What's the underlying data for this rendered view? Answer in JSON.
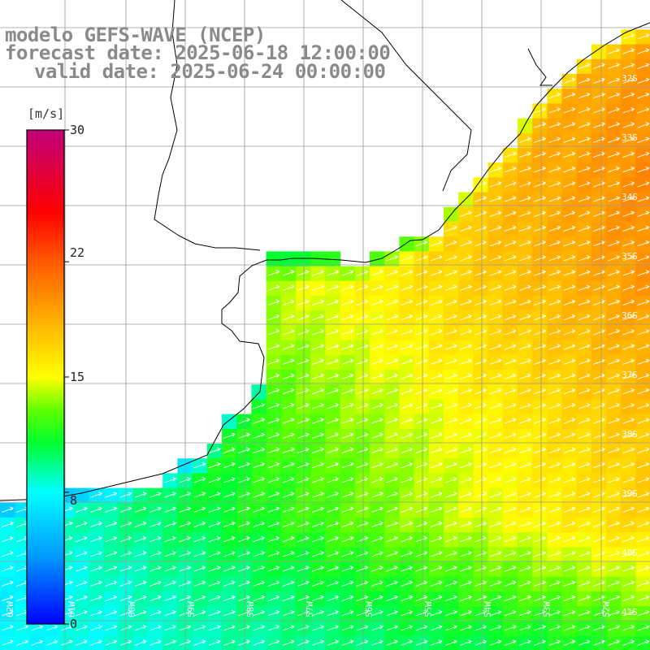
{
  "title": {
    "line1": "modelo GEFS-WAVE (NCEP)",
    "line2": "forecast date: 2025-06-18 12:00:00",
    "line3": "valid date: 2025-06-24 00:00:00"
  },
  "colorbar": {
    "units": "[m/s]",
    "min": 0,
    "max": 30,
    "ticks": [
      {
        "value": 30,
        "label": "30"
      },
      {
        "value": 22,
        "label": "22"
      },
      {
        "value": 15,
        "label": "15"
      },
      {
        "value": 8,
        "label": "8"
      },
      {
        "value": 0,
        "label": "0"
      }
    ],
    "stops": [
      {
        "value": 0,
        "color": "#0000ff"
      },
      {
        "value": 4,
        "color": "#0096ff"
      },
      {
        "value": 8,
        "color": "#00ffff"
      },
      {
        "value": 11,
        "color": "#00ff30"
      },
      {
        "value": 13,
        "color": "#60ff00"
      },
      {
        "value": 15,
        "color": "#ffff00"
      },
      {
        "value": 18.5,
        "color": "#ffae00"
      },
      {
        "value": 22,
        "color": "#ff5a00"
      },
      {
        "value": 25,
        "color": "#ff0000"
      },
      {
        "value": 30,
        "color": "#c0007a"
      }
    ]
  },
  "map": {
    "lat_labels": [
      "32S",
      "33S",
      "34S",
      "35S",
      "36S",
      "37S",
      "38S",
      "39S",
      "40S",
      "41S"
    ],
    "lon_labels": [
      "62W",
      "61W",
      "60W",
      "59W",
      "58W",
      "57W",
      "56W",
      "55W",
      "54W",
      "53W",
      "52W"
    ],
    "grid_lines": true,
    "arrow_color": "#ffffff",
    "coastline_color": "#000000",
    "wind_direction": "from SW toward NE"
  },
  "chart_data": {
    "type": "heatmap",
    "variable": "wind speed",
    "units": "[m/s]",
    "color_range": [
      0,
      30
    ],
    "lat_range": [
      "41S",
      "31S"
    ],
    "lon_range": [
      "62W",
      "52W"
    ]
  }
}
